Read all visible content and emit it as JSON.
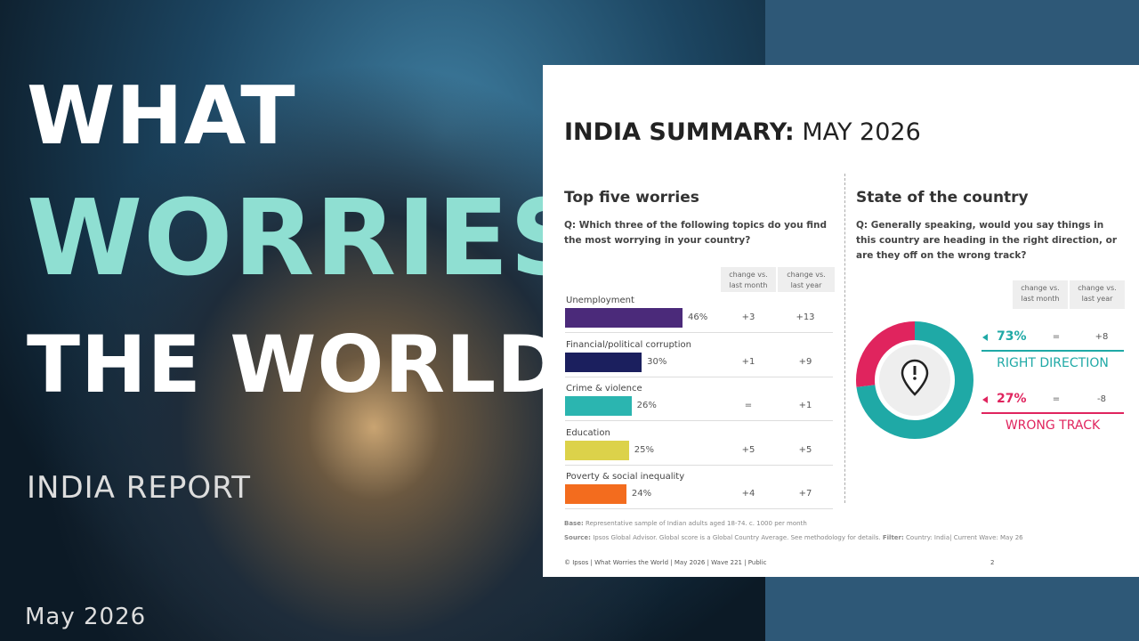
{
  "cover": {
    "line1": "WHAT",
    "line2": "WORRIES",
    "line3": "THE WORLD?",
    "subtitle": "INDIA REPORT",
    "date": "May 2026"
  },
  "summary": {
    "title_bold": "INDIA SUMMARY:",
    "title_rest": "MAY 2026",
    "worries": {
      "heading": "Top five worries",
      "question": "Q: Which three of the following topics do you find the most worrying in your country?",
      "col_month": "change vs. last month",
      "col_year": "change vs. last year",
      "categories": [
        "Unemployment",
        "Financial/political corruption",
        "Crime & violence",
        "Education",
        "Poverty & social inequality"
      ],
      "values": [
        46,
        30,
        26,
        25,
        24
      ],
      "value_labels": [
        "46%",
        "30%",
        "26%",
        "25%",
        "24%"
      ],
      "colors": [
        "#4b2a7a",
        "#1b1f5e",
        "#2bb5b0",
        "#dcd24a",
        "#f36c1e"
      ],
      "change_month": [
        "+3",
        "+1",
        "=",
        "+5",
        "+4"
      ],
      "change_year": [
        "+13",
        "+9",
        "+1",
        "+5",
        "+7"
      ]
    },
    "state": {
      "heading": "State of the country",
      "question": "Q: Generally speaking, would you say things in this country are heading in the right direction, or are they off on the wrong track?",
      "col_month": "change vs. last month",
      "col_year": "change vs. last year",
      "categories": [
        "RIGHT DIRECTION",
        "WRONG TRACK"
      ],
      "values": [
        73,
        27
      ],
      "value_labels": [
        "73%",
        "27%"
      ],
      "colors": [
        "#1fa9a6",
        "#e0245e"
      ],
      "change_month": [
        "=",
        "="
      ],
      "change_year": [
        "+8",
        "-8"
      ]
    },
    "base_label": "Base:",
    "base_text": "Representative sample of Indian adults aged 18-74. c. 1000 per month",
    "source_label": "Source:",
    "source_text": "Ipsos Global Advisor. Global score is a Global Country Average. See methodology for details.",
    "filter_label": "Filter:",
    "filter_text": "Country: India| Current Wave: May 26",
    "copyright": "© Ipsos | What Worries the World | May 2026 | Wave 221 | Public",
    "page": "2"
  }
}
